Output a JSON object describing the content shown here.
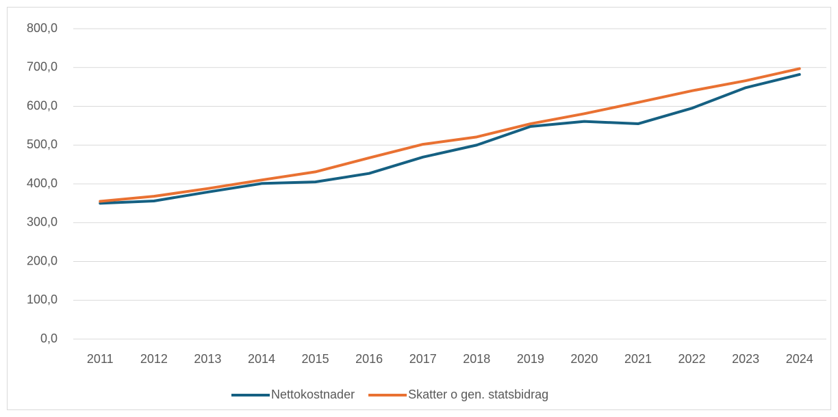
{
  "chart_data": {
    "type": "line",
    "categories": [
      "2011",
      "2012",
      "2013",
      "2014",
      "2015",
      "2016",
      "2017",
      "2018",
      "2019",
      "2020",
      "2021",
      "2022",
      "2023",
      "2024"
    ],
    "series": [
      {
        "name": "Nettokostnader",
        "color": "#156082",
        "values": [
          350,
          356,
          379,
          401,
          405,
          427,
          469,
          500,
          548,
          561,
          555,
          595,
          648,
          682
        ]
      },
      {
        "name": "Skatter o gen. statsbidrag",
        "color": "#e97132",
        "values": [
          355,
          368,
          388,
          410,
          431,
          467,
          502,
          521,
          555,
          581,
          610,
          640,
          666,
          697
        ]
      }
    ],
    "ylim": [
      0,
      800
    ],
    "yticks": [
      {
        "value": 0,
        "label": "0,0"
      },
      {
        "value": 100,
        "label": "100,0"
      },
      {
        "value": 200,
        "label": "200,0"
      },
      {
        "value": 300,
        "label": "300,0"
      },
      {
        "value": 400,
        "label": "400,0"
      },
      {
        "value": 500,
        "label": "500,0"
      },
      {
        "value": 600,
        "label": "600,0"
      },
      {
        "value": 700,
        "label": "700,0"
      },
      {
        "value": 800,
        "label": "800,0"
      }
    ],
    "grid": true,
    "legend": "bottom"
  }
}
